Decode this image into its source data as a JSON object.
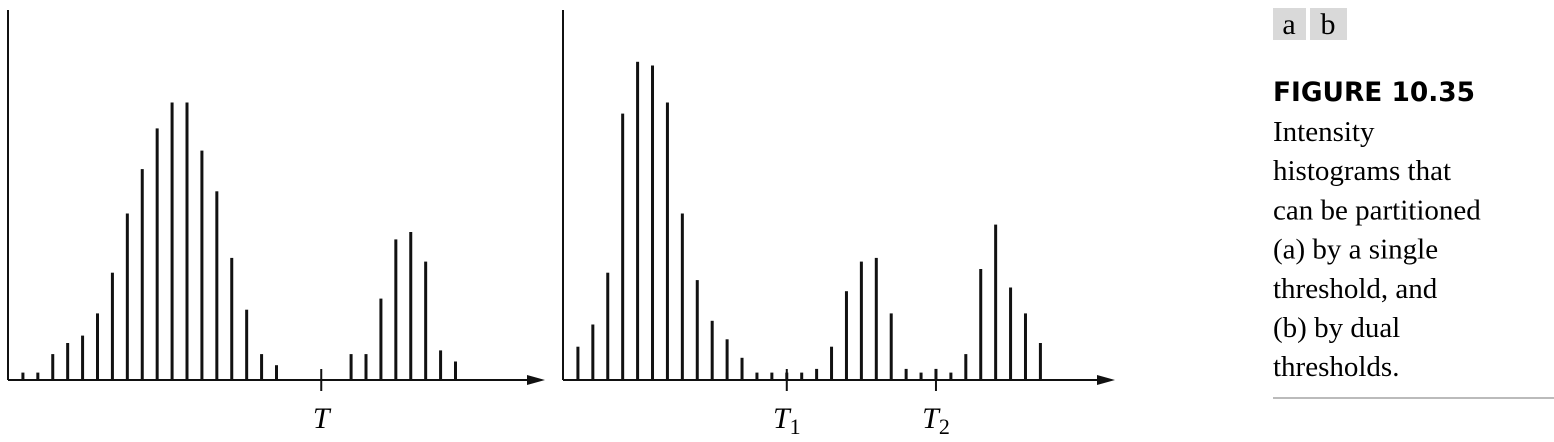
{
  "chart_data": [
    {
      "type": "bar",
      "color": "#111111",
      "x": [
        0,
        1,
        2,
        3,
        4,
        5,
        6,
        7,
        8,
        9,
        10,
        11,
        12,
        13,
        14,
        15,
        16,
        17,
        22,
        23,
        24,
        25,
        26,
        27,
        28,
        29
      ],
      "values": [
        2,
        2,
        7,
        10,
        12,
        18,
        29,
        45,
        57,
        68,
        75,
        75,
        62,
        51,
        33,
        19,
        7,
        4,
        7,
        7,
        22,
        38,
        40,
        32,
        8,
        5
      ],
      "xlim": [
        -1,
        35
      ],
      "ylim": [
        0,
        100
      ],
      "annotations": [
        {
          "label": "T",
          "x": 20
        }
      ]
    },
    {
      "type": "bar",
      "color": "#111111",
      "x": [
        0,
        1,
        2,
        3,
        4,
        5,
        6,
        7,
        8,
        9,
        10,
        11,
        12,
        13,
        14,
        15,
        16,
        17,
        18,
        19,
        20,
        21,
        22,
        23,
        24,
        25,
        26,
        27,
        28,
        29,
        30,
        31
      ],
      "values": [
        9,
        15,
        29,
        72,
        86,
        85,
        75,
        45,
        27,
        16,
        11,
        6,
        2,
        2,
        2,
        2,
        3,
        9,
        24,
        32,
        33,
        18,
        3,
        2,
        3,
        2,
        7,
        30,
        42,
        25,
        18,
        10
      ],
      "xlim": [
        -1,
        36
      ],
      "ylim": [
        0,
        100
      ],
      "annotations": [
        {
          "label": "T",
          "sub": "1",
          "x": 14
        },
        {
          "label": "T",
          "sub": "2",
          "x": 24
        }
      ]
    }
  ],
  "figure": {
    "panel_labels": [
      "a",
      "b"
    ],
    "number": "FIGURE 10.35",
    "caption_lines": [
      "Intensity",
      "histograms that",
      "can be partitioned",
      "(a) by a single",
      "threshold, and",
      "(b) by dual",
      "thresholds."
    ]
  }
}
